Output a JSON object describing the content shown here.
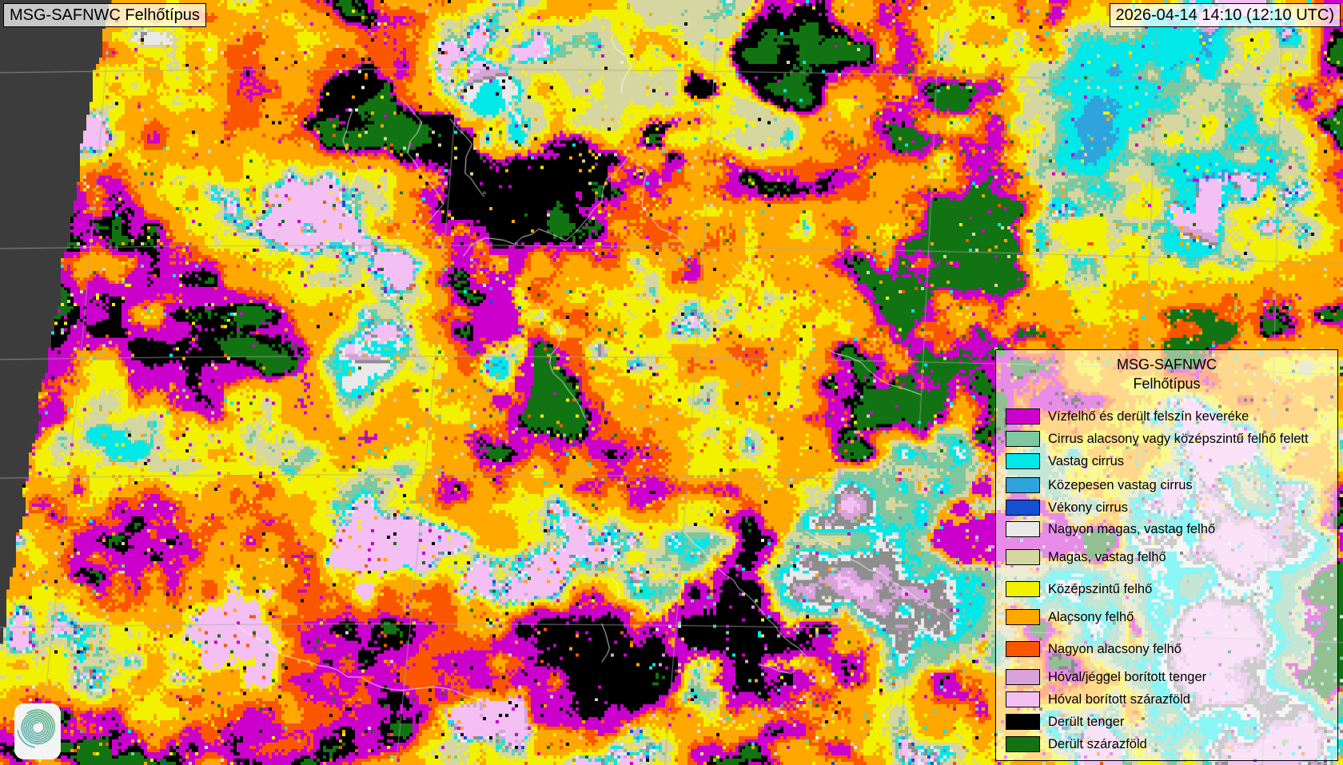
{
  "header": {
    "title": "MSG-SAFNWC Felhőtípus",
    "timestamp": "2026-04-14 14:10 (12:10 UTC)"
  },
  "legend": {
    "title_line1": "MSG-SAFNWC",
    "title_line2": "Felhőtípus",
    "items": [
      {
        "label": "Vízfelhő és derült felszín keveréke",
        "color": "#CC00CC"
      },
      {
        "label": "Cirrus alacsony vagy középszintű felhő felett",
        "color": "#7DC8A1"
      },
      {
        "label": "Vastag cirrus",
        "color": "#00E8E8"
      },
      {
        "label": "Közepesen vastag cirrus",
        "color": "#2FA3DC"
      },
      {
        "label": "Vékony cirrus",
        "color": "#1550D2"
      },
      {
        "label": "Nagyon magas, vastag felhő",
        "color": "#E9E9E9"
      },
      {
        "label": "Magas, vastag felhő",
        "color": "#D6D6A0"
      },
      {
        "label": "Középszintű felhő",
        "color": "#F2F200"
      },
      {
        "label": "Alacsony felhő",
        "color": "#FFA800"
      },
      {
        "label": "Nagyon alacsony felhő",
        "color": "#FA5600"
      },
      {
        "label": "Hóval/jéggel borított tenger",
        "color": "#D7A3DA"
      },
      {
        "label": "Hóval borított szárazföld",
        "color": "#F4BFF2"
      },
      {
        "label": "Derült tenger",
        "color": "#000000"
      },
      {
        "label": "Derült szárazföld",
        "color": "#117311"
      }
    ]
  },
  "map": {
    "no_data_color": "#3C3C3C",
    "graticule_color": "#A8A8A8",
    "coastline_color": "#FFFFFF",
    "unlisted_gray": "#8E8E8E"
  },
  "logo": {
    "green": "#3FA45F",
    "teal": "#2F9BAB",
    "box_color": "#F4F4F4"
  }
}
